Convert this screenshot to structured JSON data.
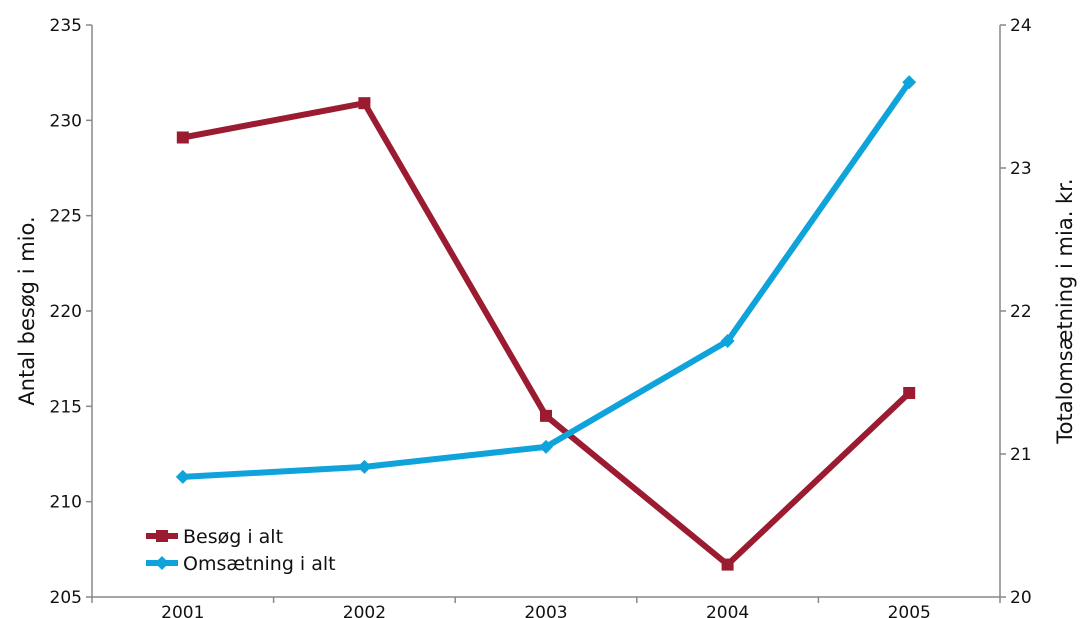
{
  "chart_data": {
    "type": "line",
    "categories": [
      "2001",
      "2002",
      "2003",
      "2004",
      "2005"
    ],
    "y_left": {
      "label": "Antal besøg i mio.",
      "range": [
        205,
        235
      ],
      "ticks": [
        "205",
        "210",
        "215",
        "220",
        "225",
        "230",
        "235"
      ]
    },
    "y_right": {
      "label": "Totalomsætning i mia. kr.",
      "range": [
        20,
        24
      ],
      "ticks": [
        "20",
        "21",
        "22",
        "23",
        "24"
      ]
    },
    "series": [
      {
        "name": "Besøg i alt",
        "axis": "left",
        "color": "#9b1b30",
        "marker": "square",
        "values": [
          229.1,
          230.9,
          214.5,
          206.7,
          215.7
        ]
      },
      {
        "name": "Omsætning i alt",
        "axis": "right",
        "color": "#0fa3dc",
        "marker": "diamond",
        "values": [
          20.84,
          20.91,
          21.05,
          21.79,
          23.6
        ]
      }
    ],
    "grid": false,
    "legend_position": "bottom-left"
  }
}
